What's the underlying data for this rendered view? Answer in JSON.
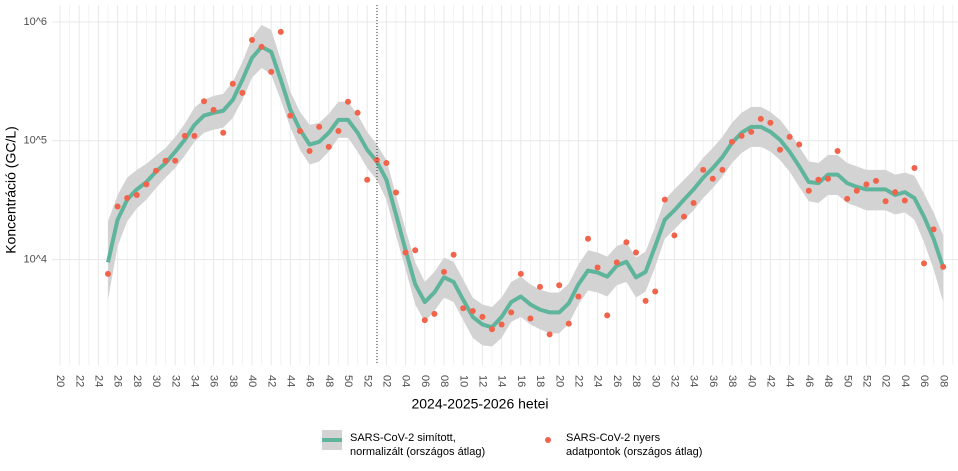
{
  "chart_data": {
    "type": "line",
    "x_label": "2024-2025-2026 hetei",
    "y_label": "Koncentráció (GC/L)",
    "log_scale": true,
    "grid": true,
    "ylim": [
      1300,
      1310000
    ],
    "yticks": [
      {
        "value": 10000,
        "label": "10^4"
      },
      {
        "value": 100000,
        "label": "10^5"
      },
      {
        "value": 1000000,
        "label": "10^6"
      }
    ],
    "categories": [
      "20",
      null,
      "22",
      null,
      "24",
      null,
      "26",
      null,
      "28",
      null,
      "30",
      null,
      "32",
      null,
      "34",
      null,
      "36",
      null,
      "38",
      null,
      "40",
      null,
      "42",
      null,
      "44",
      null,
      "46",
      null,
      "48",
      null,
      "50",
      null,
      "52",
      null,
      "02",
      null,
      "04",
      null,
      "06",
      null,
      "08",
      null,
      "10",
      null,
      "12",
      null,
      "14",
      null,
      "16",
      null,
      "18",
      null,
      "20",
      null,
      "22",
      null,
      "24",
      null,
      "26",
      null,
      "28",
      null,
      "30",
      null,
      "32",
      null,
      "34",
      null,
      "36",
      null,
      "38",
      null,
      "40",
      null,
      "42",
      null,
      "44",
      null,
      "46",
      null,
      "48",
      null,
      "50",
      null,
      "52",
      null,
      "02",
      null,
      "04",
      null,
      "06",
      null,
      "08",
      null
    ],
    "series": [
      {
        "name": "SARS-CoV-2 simított,\nnormalizált (országos átlag)",
        "color": "#5fb49c",
        "band_color": "#d3d3d3",
        "values": [
          null,
          null,
          null,
          null,
          null,
          9500,
          21700,
          32000,
          39000,
          45000,
          55000,
          65000,
          81000,
          102000,
          136000,
          163000,
          172000,
          179000,
          221000,
          326000,
          499000,
          617000,
          560000,
          326000,
          182000,
          124000,
          93000,
          98000,
          117000,
          150000,
          150000,
          117000,
          84000,
          67000,
          47000,
          24000,
          12000,
          6200,
          4400,
          5300,
          7100,
          6500,
          4600,
          3300,
          2850,
          2700,
          3300,
          4400,
          4900,
          4200,
          3800,
          3600,
          3600,
          4300,
          6200,
          8100,
          7800,
          7200,
          8900,
          9600,
          7100,
          7900,
          13000,
          21700,
          26000,
          32000,
          39000,
          49000,
          59000,
          73000,
          96000,
          117000,
          131000,
          131000,
          119000,
          102000,
          81000,
          61000,
          45000,
          44000,
          52000,
          52000,
          44000,
          41000,
          39000,
          39000,
          39000,
          35000,
          37000,
          33000,
          23000,
          15000,
          8600,
          null
        ],
        "lower": [
          null,
          null,
          null,
          null,
          null,
          4600,
          13000,
          21000,
          27000,
          32000,
          40000,
          49000,
          59000,
          75000,
          98000,
          117000,
          124000,
          129000,
          156000,
          221000,
          339000,
          411000,
          359000,
          221000,
          129000,
          84000,
          63000,
          67000,
          81000,
          106000,
          106000,
          81000,
          59000,
          47000,
          32000,
          16000,
          8300,
          4200,
          3000,
          3700,
          4800,
          4400,
          3100,
          2200,
          1900,
          1860,
          2200,
          3000,
          3300,
          2850,
          2600,
          2400,
          2400,
          2900,
          4200,
          5500,
          5300,
          4900,
          6100,
          6500,
          4800,
          5400,
          8700,
          15000,
          18000,
          21700,
          26000,
          33000,
          40000,
          50000,
          65000,
          79000,
          89000,
          89000,
          81000,
          69000,
          55000,
          41000,
          31000,
          30000,
          35000,
          35000,
          30000,
          28000,
          26000,
          26000,
          26000,
          24000,
          25000,
          21700,
          14000,
          8300,
          4400,
          null
        ],
        "upper": [
          null,
          null,
          null,
          null,
          null,
          21000,
          35000,
          49000,
          57000,
          64000,
          75000,
          87000,
          108000,
          139000,
          190000,
          221000,
          239000,
          248000,
          313000,
          461000,
          735000,
          944000,
          857000,
          480000,
          258000,
          175000,
          136000,
          142000,
          169000,
          213000,
          213000,
          166000,
          119000,
          93000,
          69000,
          35000,
          17900,
          9500,
          6500,
          7900,
          10400,
          9600,
          6800,
          4800,
          4200,
          4000,
          4800,
          6500,
          7200,
          6200,
          5600,
          5300,
          5300,
          6300,
          9100,
          12000,
          11500,
          10600,
          13000,
          14000,
          10400,
          11700,
          19000,
          32000,
          39000,
          47000,
          57000,
          72000,
          87000,
          108000,
          142000,
          172000,
          193000,
          193000,
          175000,
          150000,
          119000,
          89000,
          67000,
          65000,
          76000,
          76000,
          65000,
          61000,
          57000,
          57000,
          57000,
          52000,
          54000,
          51000,
          36000,
          25000,
          16000,
          null
        ]
      },
      {
        "name": "SARS-CoV-2 nyers\nadatpontok (országos átlag)",
        "color": "#f2634c",
        "kind": "points",
        "values": [
          null,
          null,
          null,
          null,
          null,
          7600,
          28000,
          33000,
          35000,
          43000,
          56000,
          68000,
          68000,
          110000,
          110000,
          215000,
          182000,
          117000,
          302000,
          253000,
          705000,
          617000,
          380000,
          824000,
          163000,
          121000,
          82000,
          131000,
          89000,
          121000,
          213000,
          172000,
          47000,
          69000,
          65000,
          36700,
          11500,
          12000,
          3100,
          3500,
          7900,
          11000,
          3900,
          3700,
          3300,
          2600,
          2850,
          3600,
          7600,
          3200,
          5900,
          2350,
          6100,
          2900,
          4900,
          15000,
          8600,
          3400,
          9500,
          14000,
          11500,
          4500,
          5400,
          32000,
          16000,
          23000,
          30000,
          57000,
          48000,
          57000,
          98000,
          110000,
          119000,
          153000,
          142000,
          84000,
          108000,
          93000,
          38000,
          47000,
          48000,
          82000,
          32500,
          38000,
          43000,
          46000,
          31000,
          37000,
          31500,
          59000,
          9300,
          18000,
          8700,
          null
        ]
      }
    ]
  }
}
